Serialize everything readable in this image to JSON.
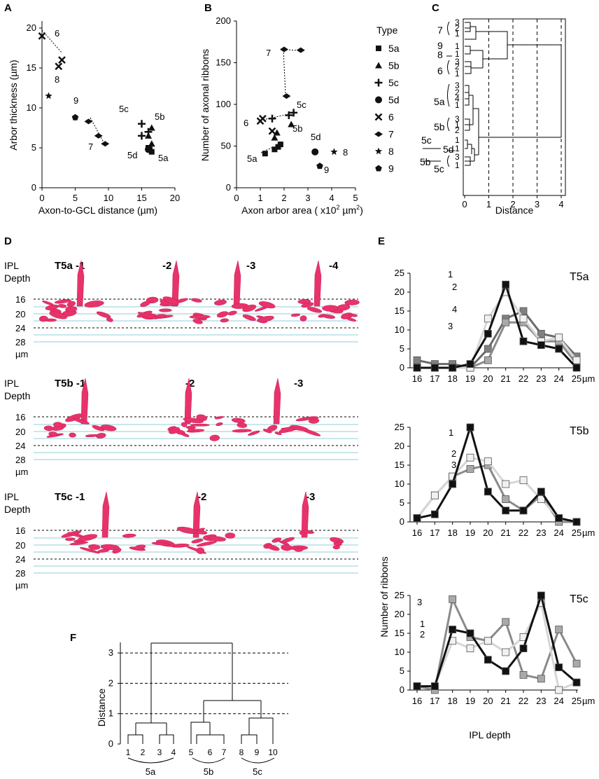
{
  "panels": {
    "A": "A",
    "B": "B",
    "C": "C",
    "D": "D",
    "E": "E",
    "F": "F"
  },
  "chart_data": [
    {
      "id": "A",
      "type": "scatter",
      "xlabel": "Axon-to-GCL distance (µm)",
      "ylabel": "Arbor thickness (µm)",
      "xlim": [
        0,
        20
      ],
      "ylim": [
        0,
        20
      ],
      "xticks": [
        "0",
        "5",
        "10",
        "15",
        "20"
      ],
      "yticks": [
        "0",
        "5",
        "10",
        "15",
        "20"
      ],
      "series": [
        {
          "name": "5a",
          "marker": "square",
          "points": [
            [
              16.5,
              4.5
            ],
            [
              16,
              5
            ],
            [
              16.2,
              4.8
            ]
          ]
        },
        {
          "name": "5b",
          "marker": "triangle",
          "points": [
            [
              16.5,
              7.5
            ],
            [
              16,
              6.5
            ],
            [
              16.5,
              5.5
            ]
          ]
        },
        {
          "name": "5c",
          "marker": "plus",
          "points": [
            [
              15,
              8
            ],
            [
              15,
              6.5
            ],
            [
              16,
              7
            ]
          ]
        },
        {
          "name": "5d",
          "marker": "circle",
          "points": [
            [
              16,
              4.8
            ]
          ]
        },
        {
          "name": "6",
          "marker": "cross",
          "points": [
            [
              0,
              19
            ],
            [
              2.5,
              15.2
            ],
            [
              3,
              16
            ]
          ]
        },
        {
          "name": "7",
          "marker": "diamond",
          "points": [
            [
              7,
              8.3
            ],
            [
              8.5,
              6.5
            ],
            [
              9.5,
              5.5
            ]
          ]
        },
        {
          "name": "8",
          "marker": "star",
          "points": [
            [
              1,
              11.5
            ]
          ]
        },
        {
          "name": "9",
          "marker": "pentagon",
          "points": [
            [
              5,
              8.8
            ]
          ]
        }
      ],
      "annotations": [
        "6",
        "8",
        "9",
        "7",
        "5c",
        "5b",
        "5d",
        "5a"
      ]
    },
    {
      "id": "B",
      "type": "scatter",
      "xlabel": "Axon arbor area ( x10",
      "xlabel_sup": "2",
      "xlabel_unit": " µm",
      "xlabel_sup2": "2",
      "xlabel_end": ")",
      "ylabel": "Number of axonal ribbons",
      "xlim": [
        0,
        5
      ],
      "ylim": [
        0,
        200
      ],
      "xticks": [
        "0",
        "1",
        "2",
        "3",
        "4",
        "5"
      ],
      "yticks": [
        "0",
        "50",
        "100",
        "150",
        "200"
      ],
      "legend_title": "Type",
      "series": [
        {
          "name": "5a",
          "marker": "square",
          "points": [
            [
              1.2,
              41
            ],
            [
              1.6,
              46
            ],
            [
              1.75,
              49
            ],
            [
              1.85,
              52
            ]
          ]
        },
        {
          "name": "5b",
          "marker": "triangle",
          "points": [
            [
              1.6,
              60
            ],
            [
              1.7,
              66
            ],
            [
              2.3,
              76
            ]
          ]
        },
        {
          "name": "5c",
          "marker": "plus",
          "points": [
            [
              1.5,
              83
            ],
            [
              2.2,
              87
            ],
            [
              2.4,
              90
            ]
          ]
        },
        {
          "name": "5d",
          "marker": "circle",
          "points": [
            [
              3.3,
              43
            ]
          ]
        },
        {
          "name": "6",
          "marker": "cross",
          "points": [
            [
              1.0,
              80
            ],
            [
              1.1,
              83
            ],
            [
              1.5,
              68
            ]
          ]
        },
        {
          "name": "7",
          "marker": "diamond",
          "points": [
            [
              2.0,
              166
            ],
            [
              2.7,
              165
            ],
            [
              2.1,
              110
            ]
          ]
        },
        {
          "name": "8",
          "marker": "star",
          "points": [
            [
              4.1,
              43
            ]
          ]
        },
        {
          "name": "9",
          "marker": "pentagon",
          "points": [
            [
              3.5,
              26
            ]
          ]
        }
      ],
      "annotations": [
        "7",
        "5c",
        "6",
        "5b",
        "5a",
        "5d",
        "8",
        "9"
      ]
    },
    {
      "id": "C",
      "type": "dendrogram",
      "xlabel": "Distance",
      "xticks": [
        "0",
        "1",
        "2",
        "3",
        "4"
      ],
      "group_labels": [
        "7",
        "9",
        "8",
        "6",
        "5a",
        "5b",
        "5c",
        "5d",
        "5b",
        "5c"
      ],
      "leaf_labels": [
        "3",
        "2",
        "1",
        "1",
        "1",
        "3",
        "2",
        "1",
        "3",
        "2",
        "4",
        "1",
        "3",
        "1",
        "2",
        "1",
        "1",
        "3",
        "1"
      ]
    },
    {
      "id": "E",
      "type": "line",
      "ylabel": "Number of ribbons",
      "xlabel": "IPL depth",
      "x": [
        16,
        17,
        18,
        19,
        20,
        21,
        22,
        23,
        24,
        25
      ],
      "x_unit": "µm",
      "ylim": [
        0,
        25
      ],
      "yticks": [
        "0",
        "5",
        "10",
        "15",
        "20",
        "25"
      ],
      "subplots": [
        {
          "title": "T5a",
          "series": [
            {
              "name": "1",
              "values": [
                0,
                0,
                0,
                1,
                9,
                22,
                7,
                6,
                5,
                0
              ]
            },
            {
              "name": "2",
              "values": [
                0,
                0,
                0,
                0,
                13,
                20,
                13,
                7,
                8,
                2
              ]
            },
            {
              "name": "3",
              "values": [
                0,
                0,
                0,
                0,
                2,
                12,
                12,
                7,
                7,
                1
              ]
            },
            {
              "name": "4",
              "values": [
                2,
                1,
                1,
                0,
                5,
                13,
                15,
                9,
                8,
                3
              ]
            }
          ],
          "labels": [
            "1",
            "2",
            "4",
            "3"
          ]
        },
        {
          "title": "T5b",
          "series": [
            {
              "name": "1",
              "values": [
                1,
                2,
                10,
                25,
                8,
                3,
                3,
                8,
                1,
                0
              ]
            },
            {
              "name": "2",
              "values": [
                1,
                7,
                12,
                17,
                16,
                10,
                11,
                6,
                1,
                0
              ]
            },
            {
              "name": "3",
              "values": [
                1,
                7,
                12,
                14,
                15,
                6,
                3,
                7,
                0,
                0
              ]
            }
          ],
          "labels": [
            "1",
            "2",
            "3"
          ]
        },
        {
          "title": "T5c",
          "series": [
            {
              "name": "1",
              "values": [
                1,
                1,
                16,
                15,
                8,
                5,
                11,
                25,
                6,
                2
              ]
            },
            {
              "name": "2",
              "values": [
                1,
                1,
                13,
                11,
                13,
                10,
                14,
                23,
                0,
                2
              ]
            },
            {
              "name": "3",
              "values": [
                1,
                0,
                24,
                14,
                13,
                18,
                4,
                3,
                16,
                7
              ]
            }
          ],
          "labels": [
            "3",
            "1",
            "2"
          ]
        }
      ]
    },
    {
      "id": "F",
      "type": "dendrogram",
      "ylabel": "Distance",
      "yticks": [
        "0",
        "1",
        "2",
        "3"
      ],
      "leaves": [
        "1",
        "2",
        "3",
        "4",
        "5",
        "6",
        "7",
        "8",
        "9",
        "10"
      ],
      "groups": [
        "5a",
        "5b",
        "5c"
      ]
    }
  ],
  "panelD": {
    "depth_label": [
      "IPL",
      "Depth"
    ],
    "depths": [
      "16",
      "20",
      "24",
      "28"
    ],
    "unit": "µm",
    "rows": [
      {
        "labels": [
          "T5a -1",
          "-2",
          "-3",
          "-4"
        ]
      },
      {
        "labels": [
          "T5b -1",
          "-2",
          "-3"
        ]
      },
      {
        "labels": [
          "T5c -1",
          "-2",
          "-3"
        ]
      }
    ]
  },
  "colors": {
    "black": "#111111",
    "mid": "#8a8a8a",
    "light": "#d8d8d8",
    "lightest": "#f2f2f2",
    "cell": "#e8336a",
    "line": "#8fcfd8"
  }
}
